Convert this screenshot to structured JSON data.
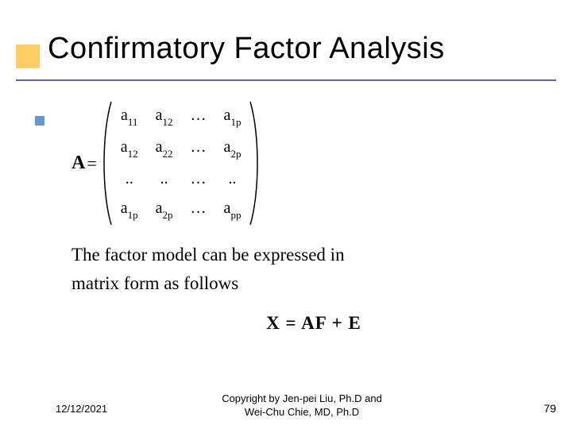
{
  "title": "Confirmatory Factor Analysis",
  "matrix": {
    "label": "A",
    "rows": [
      [
        "a|11",
        "a|12",
        "…",
        "a|1p"
      ],
      [
        "a|12",
        "a|22",
        "…",
        "a|2p"
      ],
      [
        "..",
        "..",
        "…",
        ".."
      ],
      [
        "a|1p",
        "a|2p",
        "…",
        "a|pp"
      ]
    ]
  },
  "body_line1": "The factor model can be expressed in",
  "body_line2": "matrix form as follows",
  "equation": "X = AF + E",
  "footer": {
    "date": "12/12/2021",
    "copyright_l1": "Copyright by Jen-pei Liu, Ph.D and",
    "copyright_l2": "Wei-Chu Chie, MD, Ph.D",
    "page": "79"
  },
  "colors": {
    "accent_orange": "#ffcc66",
    "accent_blue": "#6699cc",
    "underline": "#666699"
  }
}
